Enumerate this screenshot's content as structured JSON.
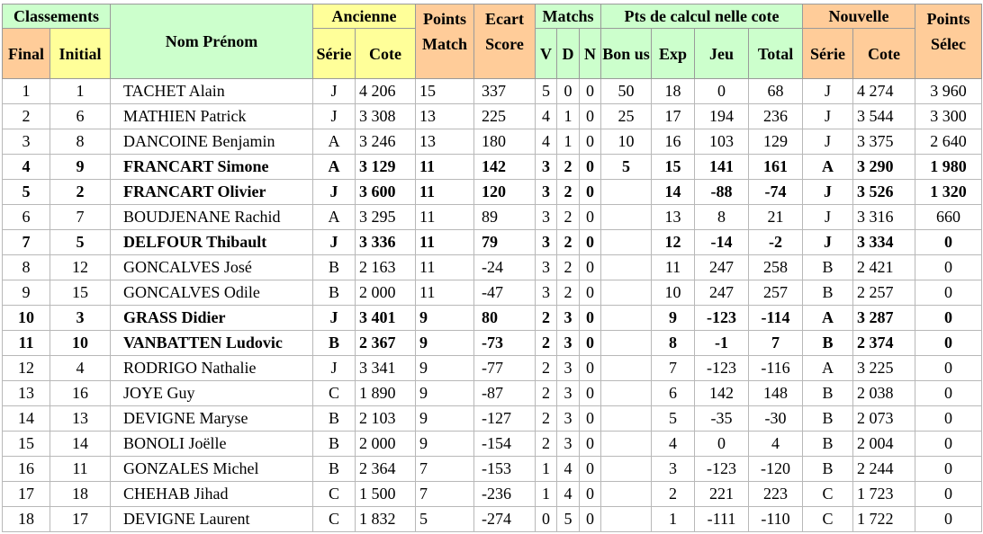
{
  "headers": {
    "classements": "Classements",
    "final": "Final",
    "initial": "Initial",
    "nom_prenom": "Nom Prénom",
    "ancienne": "Ancienne",
    "serie": "Série",
    "cote": "Cote",
    "points_match": "Points Match",
    "ecart_score": "Ecart Score",
    "matchs": "Matchs",
    "v": "V",
    "d": "D",
    "n": "N",
    "pts_calcul": "Pts de calcul nelle cote",
    "bonus": "Bon us",
    "exp": "Exp",
    "jeu": "Jeu",
    "total": "Total",
    "nouvelle": "Nouvelle",
    "serie_new": "Série",
    "cote_new": "Cote",
    "points_selec": "Points Sélec"
  },
  "rows": [
    {
      "final": "1",
      "initial": "1",
      "name": "TACHET Alain",
      "serie": "J",
      "cote": "4 206",
      "pts": "15",
      "ecart": "337",
      "v": "5",
      "d": "0",
      "n": "0",
      "bonus": "50",
      "exp": "18",
      "jeu": "0",
      "total": "68",
      "nserie": "J",
      "ncote": "4 274",
      "sel": "3 960",
      "bold": false
    },
    {
      "final": "2",
      "initial": "6",
      "name": "MATHIEN Patrick",
      "serie": "J",
      "cote": "3 308",
      "pts": "13",
      "ecart": "225",
      "v": "4",
      "d": "1",
      "n": "0",
      "bonus": "25",
      "exp": "17",
      "jeu": "194",
      "total": "236",
      "nserie": "J",
      "ncote": "3 544",
      "sel": "3 300",
      "bold": false
    },
    {
      "final": "3",
      "initial": "8",
      "name": "DANCOINE Benjamin",
      "serie": "A",
      "cote": "3 246",
      "pts": "13",
      "ecart": "180",
      "v": "4",
      "d": "1",
      "n": "0",
      "bonus": "10",
      "exp": "16",
      "jeu": "103",
      "total": "129",
      "nserie": "J",
      "ncote": "3 375",
      "sel": "2 640",
      "bold": false
    },
    {
      "final": "4",
      "initial": "9",
      "name": "FRANCART Simone",
      "serie": "A",
      "cote": "3 129",
      "pts": "11",
      "ecart": "142",
      "v": "3",
      "d": "2",
      "n": "0",
      "bonus": "5",
      "exp": "15",
      "jeu": "141",
      "total": "161",
      "nserie": "A",
      "ncote": "3 290",
      "sel": "1 980",
      "bold": true
    },
    {
      "final": "5",
      "initial": "2",
      "name": "FRANCART Olivier",
      "serie": "J",
      "cote": "3 600",
      "pts": "11",
      "ecart": "120",
      "v": "3",
      "d": "2",
      "n": "0",
      "bonus": "",
      "exp": "14",
      "jeu": "-88",
      "total": "-74",
      "nserie": "J",
      "ncote": "3 526",
      "sel": "1 320",
      "bold": true
    },
    {
      "final": "6",
      "initial": "7",
      "name": "BOUDJENANE Rachid",
      "serie": "A",
      "cote": "3 295",
      "pts": "11",
      "ecart": "89",
      "v": "3",
      "d": "2",
      "n": "0",
      "bonus": "",
      "exp": "13",
      "jeu": "8",
      "total": "21",
      "nserie": "J",
      "ncote": "3 316",
      "sel": "660",
      "bold": false
    },
    {
      "final": "7",
      "initial": "5",
      "name": "DELFOUR Thibault",
      "serie": "J",
      "cote": "3 336",
      "pts": "11",
      "ecart": "79",
      "v": "3",
      "d": "2",
      "n": "0",
      "bonus": "",
      "exp": "12",
      "jeu": "-14",
      "total": "-2",
      "nserie": "J",
      "ncote": "3 334",
      "sel": "0",
      "bold": true
    },
    {
      "final": "8",
      "initial": "12",
      "name": "GONCALVES José",
      "serie": "B",
      "cote": "2 163",
      "pts": "11",
      "ecart": "-24",
      "v": "3",
      "d": "2",
      "n": "0",
      "bonus": "",
      "exp": "11",
      "jeu": "247",
      "total": "258",
      "nserie": "B",
      "ncote": "2 421",
      "sel": "0",
      "bold": false
    },
    {
      "final": "9",
      "initial": "15",
      "name": "GONCALVES Odile",
      "serie": "B",
      "cote": "2 000",
      "pts": "11",
      "ecart": "-47",
      "v": "3",
      "d": "2",
      "n": "0",
      "bonus": "",
      "exp": "10",
      "jeu": "247",
      "total": "257",
      "nserie": "B",
      "ncote": "2 257",
      "sel": "0",
      "bold": false
    },
    {
      "final": "10",
      "initial": "3",
      "name": "GRASS Didier",
      "serie": "J",
      "cote": "3 401",
      "pts": "9",
      "ecart": "80",
      "v": "2",
      "d": "3",
      "n": "0",
      "bonus": "",
      "exp": "9",
      "jeu": "-123",
      "total": "-114",
      "nserie": "A",
      "ncote": "3 287",
      "sel": "0",
      "bold": true
    },
    {
      "final": "11",
      "initial": "10",
      "name": "VANBATTEN Ludovic",
      "serie": "B",
      "cote": "2 367",
      "pts": "9",
      "ecart": "-73",
      "v": "2",
      "d": "3",
      "n": "0",
      "bonus": "",
      "exp": "8",
      "jeu": "-1",
      "total": "7",
      "nserie": "B",
      "ncote": "2 374",
      "sel": "0",
      "bold": true
    },
    {
      "final": "12",
      "initial": "4",
      "name": "RODRIGO Nathalie",
      "serie": "J",
      "cote": "3 341",
      "pts": "9",
      "ecart": "-77",
      "v": "2",
      "d": "3",
      "n": "0",
      "bonus": "",
      "exp": "7",
      "jeu": "-123",
      "total": "-116",
      "nserie": "A",
      "ncote": "3 225",
      "sel": "0",
      "bold": false
    },
    {
      "final": "13",
      "initial": "16",
      "name": "JOYE Guy",
      "serie": "C",
      "cote": "1 890",
      "pts": "9",
      "ecart": "-87",
      "v": "2",
      "d": "3",
      "n": "0",
      "bonus": "",
      "exp": "6",
      "jeu": "142",
      "total": "148",
      "nserie": "B",
      "ncote": "2 038",
      "sel": "0",
      "bold": false
    },
    {
      "final": "14",
      "initial": "13",
      "name": "DEVIGNE Maryse",
      "serie": "B",
      "cote": "2 103",
      "pts": "9",
      "ecart": "-127",
      "v": "2",
      "d": "3",
      "n": "0",
      "bonus": "",
      "exp": "5",
      "jeu": "-35",
      "total": "-30",
      "nserie": "B",
      "ncote": "2 073",
      "sel": "0",
      "bold": false
    },
    {
      "final": "15",
      "initial": "14",
      "name": "BONOLI Joëlle",
      "serie": "B",
      "cote": "2 000",
      "pts": "9",
      "ecart": "-154",
      "v": "2",
      "d": "3",
      "n": "0",
      "bonus": "",
      "exp": "4",
      "jeu": "0",
      "total": "4",
      "nserie": "B",
      "ncote": "2 004",
      "sel": "0",
      "bold": false
    },
    {
      "final": "16",
      "initial": "11",
      "name": "GONZALES Michel",
      "serie": "B",
      "cote": "2 364",
      "pts": "7",
      "ecart": "-153",
      "v": "1",
      "d": "4",
      "n": "0",
      "bonus": "",
      "exp": "3",
      "jeu": "-123",
      "total": "-120",
      "nserie": "B",
      "ncote": "2 244",
      "sel": "0",
      "bold": false
    },
    {
      "final": "17",
      "initial": "18",
      "name": "CHEHAB Jihad",
      "serie": "C",
      "cote": "1 500",
      "pts": "7",
      "ecart": "-236",
      "v": "1",
      "d": "4",
      "n": "0",
      "bonus": "",
      "exp": "2",
      "jeu": "221",
      "total": "223",
      "nserie": "C",
      "ncote": "1 723",
      "sel": "0",
      "bold": false
    },
    {
      "final": "18",
      "initial": "17",
      "name": "DEVIGNE Laurent",
      "serie": "C",
      "cote": "1 832",
      "pts": "5",
      "ecart": "-274",
      "v": "0",
      "d": "5",
      "n": "0",
      "bonus": "",
      "exp": "1",
      "jeu": "-111",
      "total": "-110",
      "nserie": "C",
      "ncote": "1 722",
      "sel": "0",
      "bold": false
    }
  ]
}
